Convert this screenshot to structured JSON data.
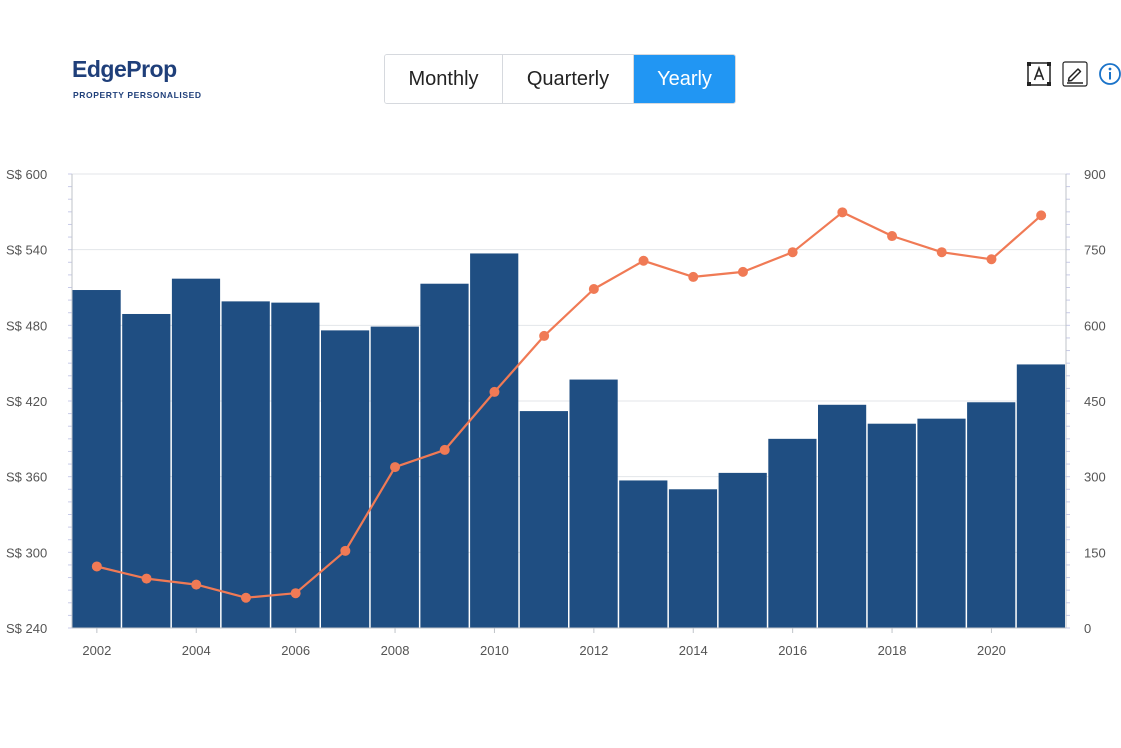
{
  "brand": {
    "name_edge": "Edge",
    "name_prop": "Prop",
    "tagline": "PROPERTY PERSONALISED"
  },
  "period_tabs": [
    {
      "label": "Monthly",
      "active": false
    },
    {
      "label": "Quarterly",
      "active": false
    },
    {
      "label": "Yearly",
      "active": true
    }
  ],
  "toolbar": {
    "icons": [
      "text-box-icon",
      "pencil-icon",
      "info-icon"
    ]
  },
  "colors": {
    "brand": "#1f3f7a",
    "bar": "#1f4e82",
    "line": "#f07a55",
    "accent": "#2196f3"
  },
  "chart_data": {
    "type": "bar",
    "x": [
      2002,
      2003,
      2004,
      2005,
      2006,
      2007,
      2008,
      2009,
      2010,
      2011,
      2012,
      2013,
      2014,
      2015,
      2016,
      2017,
      2018,
      2019,
      2020,
      2021
    ],
    "x_tick_labels": [
      "2002",
      "2004",
      "2006",
      "2008",
      "2010",
      "2012",
      "2014",
      "2016",
      "2018",
      "2020"
    ],
    "series": [
      {
        "type": "bar",
        "axis": "left",
        "color": "#1f4e82",
        "values": [
          508,
          489,
          517,
          499,
          498,
          476,
          479,
          513,
          537,
          412,
          437,
          357,
          350,
          363,
          390,
          417,
          402,
          406,
          419,
          449
        ]
      },
      {
        "type": "line",
        "axis": "right",
        "color": "#f07a55",
        "values": [
          122,
          98,
          86,
          60,
          69,
          153,
          319,
          353,
          468,
          579,
          672,
          728,
          696,
          706,
          745,
          824,
          777,
          745,
          731,
          818
        ]
      }
    ],
    "y_left": {
      "min": 240,
      "max": 600,
      "ticks": [
        240,
        300,
        360,
        420,
        480,
        540,
        600
      ],
      "prefix": "S$ "
    },
    "y_right": {
      "min": 0,
      "max": 900,
      "ticks": [
        0,
        150,
        300,
        450,
        600,
        750,
        900
      ]
    },
    "grid": true,
    "legend": "none"
  }
}
